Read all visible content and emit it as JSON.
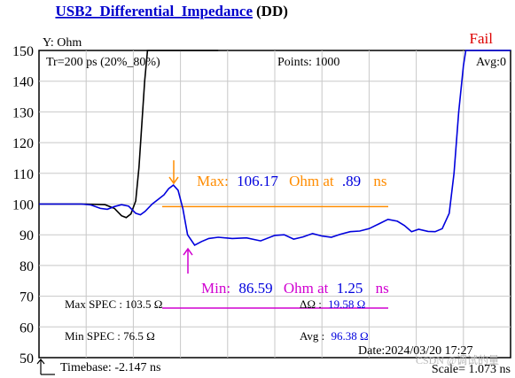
{
  "title": {
    "main": "USB2_Differential_Impedance",
    "suffix": "(DD)"
  },
  "status": "Fail",
  "header": {
    "y_unit": "Y: Ohm",
    "risetime": "Tr=200  ps (20%_80%)",
    "points": "Points: 1000",
    "avg": "Avg:0"
  },
  "markers": {
    "max": {
      "label": "Max:",
      "value": "106.17",
      "unit": "Ohm at",
      "at": ".89",
      "at_unit": "ns"
    },
    "min": {
      "label": "Min:",
      "value": "86.59",
      "unit": "Ohm at",
      "at": "1.25",
      "at_unit": "ns"
    }
  },
  "spec": {
    "max_spec": "Max SPEC : 103.5 Ω",
    "min_spec": "Min  SPEC : 76.5  Ω",
    "delta_label": "ΔΩ   :",
    "delta_value": "19.58 Ω",
    "avg_label": "Avg :",
    "avg_value": "96.38 Ω"
  },
  "footer": {
    "timebase": "Timebase: -2.147  ns",
    "date": "Date:2024/03/20 17:27",
    "scale": "Scale=  1.073 ns",
    "watermark": "CSDN @调试的量"
  },
  "colors": {
    "blue": "#0000dd",
    "black": "#000000",
    "orange": "#ff8c00",
    "magenta": "#d000d0",
    "fail": "#dd0000",
    "title": "#0000cc"
  },
  "chart_data": {
    "type": "line",
    "ylim": [
      50,
      150
    ],
    "yticks": [
      50,
      60,
      70,
      80,
      90,
      100,
      110,
      120,
      130,
      140,
      150
    ],
    "x_divisions": 10,
    "max_spec_line": 103.5,
    "min_spec_line": 76.5,
    "series": [
      {
        "color": "blue",
        "points": [
          [
            0,
            100
          ],
          [
            0.4,
            100
          ],
          [
            0.9,
            100
          ],
          [
            1.1,
            99.7
          ],
          [
            1.3,
            98.6
          ],
          [
            1.45,
            98.3
          ],
          [
            1.6,
            99.2
          ],
          [
            1.75,
            99.8
          ],
          [
            1.9,
            99.3
          ],
          [
            2.05,
            97.0
          ],
          [
            2.15,
            96.5
          ],
          [
            2.25,
            97.6
          ],
          [
            2.4,
            100.0
          ],
          [
            2.55,
            101.8
          ],
          [
            2.65,
            103.0
          ],
          [
            2.75,
            105.0
          ],
          [
            2.85,
            106.17
          ],
          [
            2.95,
            104.5
          ],
          [
            3.05,
            98.5
          ],
          [
            3.15,
            90.0
          ],
          [
            3.3,
            86.59
          ],
          [
            3.45,
            87.8
          ],
          [
            3.6,
            88.8
          ],
          [
            3.8,
            89.2
          ],
          [
            4.1,
            88.8
          ],
          [
            4.4,
            89.0
          ],
          [
            4.7,
            88.0
          ],
          [
            5.0,
            89.8
          ],
          [
            5.2,
            90.0
          ],
          [
            5.4,
            88.6
          ],
          [
            5.6,
            89.3
          ],
          [
            5.8,
            90.4
          ],
          [
            6.0,
            89.6
          ],
          [
            6.2,
            89.2
          ],
          [
            6.4,
            90.2
          ],
          [
            6.6,
            91.0
          ],
          [
            6.8,
            91.2
          ],
          [
            7.0,
            92.0
          ],
          [
            7.2,
            93.5
          ],
          [
            7.4,
            95.0
          ],
          [
            7.6,
            94.4
          ],
          [
            7.75,
            93.0
          ],
          [
            7.9,
            91.0
          ],
          [
            8.05,
            91.8
          ],
          [
            8.25,
            91.1
          ],
          [
            8.4,
            91.0
          ],
          [
            8.55,
            92.0
          ],
          [
            8.7,
            97.0
          ],
          [
            8.8,
            110.0
          ],
          [
            8.9,
            130.0
          ],
          [
            9.0,
            145.0
          ],
          [
            9.05,
            150.0
          ],
          [
            10,
            150.0
          ]
        ]
      },
      {
        "color": "black",
        "points": [
          [
            0,
            100
          ],
          [
            1.0,
            100
          ],
          [
            1.4,
            99.8
          ],
          [
            1.6,
            98.6
          ],
          [
            1.75,
            96.2
          ],
          [
            1.85,
            95.6
          ],
          [
            1.95,
            96.8
          ],
          [
            2.05,
            101.0
          ],
          [
            2.12,
            112.0
          ],
          [
            2.18,
            126.0
          ],
          [
            2.24,
            140.0
          ],
          [
            2.3,
            150.0
          ],
          [
            2.8,
            150.0
          ],
          [
            3.3,
            150.0
          ],
          [
            3.8,
            150.0
          ]
        ]
      }
    ]
  }
}
